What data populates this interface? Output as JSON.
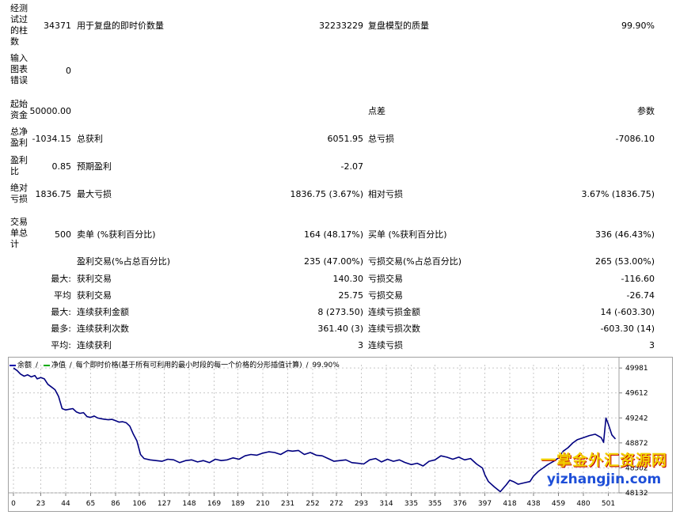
{
  "report": {
    "bars_tested_label": "经测试过的柱数",
    "bars_tested_value": "34371",
    "ticks_modelled_label": "用于复盘的即时价数量",
    "ticks_modelled_value": "32233229",
    "modelling_quality_label": "复盘模型的质量",
    "modelling_quality_value": "99.90%",
    "mismatched_label": "输入图表错误",
    "mismatched_value": "0",
    "initial_deposit_label": "起始资金",
    "initial_deposit_value": "50000.00",
    "spread_label": "点差",
    "spread_value": "参数",
    "net_profit_label": "总净盈利",
    "net_profit_value": "-1034.15",
    "gross_profit_label": "总获利",
    "gross_profit_value": "6051.95",
    "gross_loss_label": "总亏损",
    "gross_loss_value": "-7086.10",
    "profit_factor_label": "盈利比",
    "profit_factor_value": "0.85",
    "expected_payoff_label": "预期盈利",
    "expected_payoff_value": "-2.07",
    "abs_drawdown_label": "绝对亏损",
    "abs_drawdown_value": "1836.75",
    "max_drawdown_label": "最大亏损",
    "max_drawdown_value": "1836.75 (3.67%)",
    "rel_drawdown_label": "相对亏损",
    "rel_drawdown_value": "3.67% (1836.75)",
    "total_trades_label": "交易单总计",
    "total_trades_value": "500",
    "short_label": "卖单 (%获利百分比)",
    "short_value": "164 (48.17%)",
    "long_label": "买单 (%获利百分比)",
    "long_value": "336 (46.43%)",
    "profit_trades_label": "盈利交易(%占总百分比)",
    "profit_trades_value": "235 (47.00%)",
    "loss_trades_label": "亏损交易(%占总百分比)",
    "loss_trades_value": "265 (53.00%)",
    "largest_prefix": "最大:",
    "largest_profit_label": "获利交易",
    "largest_profit_value": "140.30",
    "largest_loss_label": "亏损交易",
    "largest_loss_value": "-116.60",
    "average_prefix": "平均",
    "avg_profit_label": "获利交易",
    "avg_profit_value": "25.75",
    "avg_loss_label": "亏损交易",
    "avg_loss_value": "-26.74",
    "max_cons_prefix": "最大:",
    "max_cons_wins_label": "连续获利金额",
    "max_cons_wins_value": "8 (273.50)",
    "max_cons_losses_label": "连续亏损金额",
    "max_cons_losses_value": "14 (-603.30)",
    "max_cons_profit_prefix": "最多:",
    "max_cons_profit_label": "连续获利次数",
    "max_cons_profit_value": "361.40 (3)",
    "max_cons_loss_label": "连续亏损次数",
    "max_cons_loss_value": "-603.30 (14)",
    "avg_cons_prefix": "平均:",
    "avg_cons_wins_label": "连续获利",
    "avg_cons_wins_value": "3",
    "avg_cons_losses_label": "连续亏损",
    "avg_cons_losses_value": "3"
  },
  "legend": {
    "balance": "余额",
    "equity": "净值",
    "description": "每个即时价格(基于所有可利用的最小时段的每一个价格的分形插值计算)",
    "quality": "99.90%"
  },
  "watermark": {
    "line1": "一掌金外汇资源网",
    "line2": "yizhangjin.com"
  },
  "colors": {
    "line": "#000080",
    "grid": "#c8c8c8",
    "legend_balance": "#0000aa",
    "legend_equity": "#00aa00"
  },
  "chart_data": {
    "type": "line",
    "series": [
      {
        "name": "余额",
        "x": [
          0,
          3,
          6,
          9,
          12,
          15,
          18,
          20,
          23,
          26,
          29,
          32,
          35,
          38,
          41,
          44,
          47,
          50,
          53,
          56,
          59,
          62,
          65,
          68,
          71,
          74,
          77,
          80,
          83,
          86,
          89,
          92,
          95,
          98,
          101,
          104,
          107,
          110,
          115,
          120,
          125,
          130,
          135,
          140,
          145,
          150,
          155,
          160,
          165,
          170,
          175,
          180,
          185,
          190,
          195,
          200,
          205,
          210,
          215,
          220,
          225,
          231,
          235,
          240,
          245,
          250,
          255,
          260,
          265,
          270,
          275,
          280,
          285,
          290,
          295,
          300,
          305,
          310,
          315,
          320,
          325,
          330,
          335,
          340,
          345,
          350,
          355,
          360,
          365,
          370,
          375,
          380,
          385,
          390,
          395,
          397,
          400,
          405,
          410,
          415,
          418,
          421,
          425,
          430,
          435,
          438,
          442,
          446,
          450,
          455,
          459,
          463,
          467,
          471,
          475,
          480,
          485,
          490,
          495,
          497,
          499,
          501,
          504,
          507
        ],
        "values": [
          49981,
          49945,
          49890,
          49860,
          49880,
          49850,
          49870,
          49820,
          49840,
          49820,
          49740,
          49700,
          49660,
          49560,
          49380,
          49360,
          49370,
          49380,
          49330,
          49310,
          49320,
          49260,
          49250,
          49270,
          49240,
          49230,
          49220,
          49215,
          49220,
          49200,
          49180,
          49185,
          49170,
          49120,
          49000,
          48900,
          48700,
          48640,
          48620,
          48610,
          48600,
          48630,
          48620,
          48580,
          48610,
          48620,
          48590,
          48610,
          48580,
          48630,
          48610,
          48620,
          48650,
          48630,
          48680,
          48700,
          48690,
          48720,
          48740,
          48730,
          48700,
          48760,
          48750,
          48760,
          48700,
          48730,
          48690,
          48680,
          48640,
          48600,
          48610,
          48620,
          48580,
          48570,
          48560,
          48620,
          48640,
          48590,
          48630,
          48600,
          48620,
          48580,
          48550,
          48570,
          48530,
          48600,
          48620,
          48680,
          48660,
          48630,
          48660,
          48620,
          48640,
          48560,
          48500,
          48400,
          48300,
          48220,
          48150,
          48250,
          48320,
          48300,
          48260,
          48280,
          48300,
          48380,
          48450,
          48500,
          48550,
          48600,
          48650,
          48750,
          48800,
          48870,
          48920,
          48950,
          48980,
          49000,
          48950,
          48880,
          49240,
          49150,
          48990,
          48930
        ]
      }
    ],
    "x_ticks": [
      0,
      23,
      44,
      65,
      86,
      106,
      127,
      148,
      169,
      189,
      210,
      231,
      252,
      272,
      293,
      314,
      335,
      355,
      376,
      397,
      418,
      438,
      459,
      480,
      501
    ],
    "y_ticks": [
      49981,
      49612,
      49242,
      48872,
      48502,
      48132
    ],
    "xlim": [
      0,
      510
    ],
    "ylim": [
      48132,
      50030
    ],
    "grid": true
  }
}
